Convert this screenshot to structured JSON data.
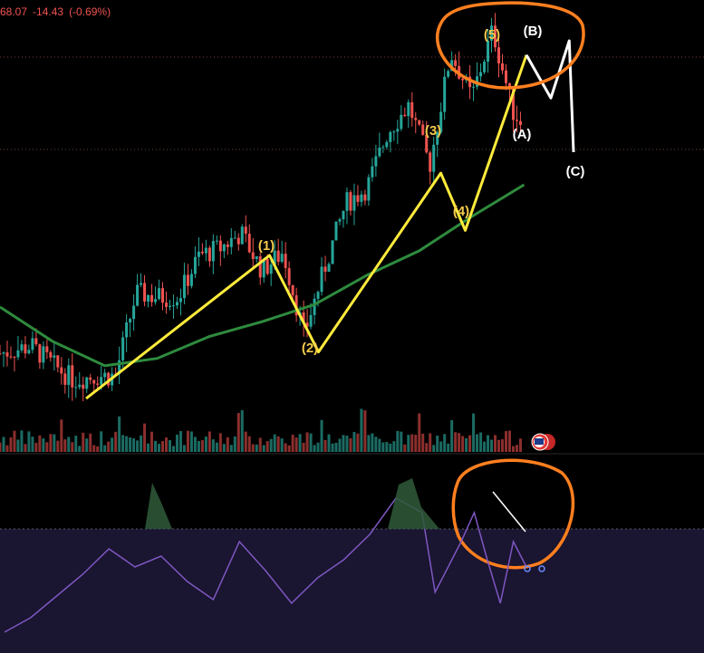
{
  "header": {
    "price": "68.07",
    "change": "-14.43",
    "change_pct": "(-0.69%)"
  },
  "colors": {
    "up": "#26a69a",
    "down": "#ef5350",
    "wave": "#ffeb3b",
    "ma": "#2e8b3e",
    "rsi": "#7e57c2",
    "annotation": "#ff7f1f",
    "correction": "#ffffff",
    "label_impulse": "#f2c94c",
    "label_correction": "#ffffff"
  },
  "chart_data": {
    "type": "candlestick_with_rsi",
    "wave_labels": {
      "impulse": [
        "(1)",
        "(2)",
        "(3)",
        "(4)",
        "(5)"
      ],
      "correction": [
        "(A)",
        "(B)",
        "(C)"
      ]
    },
    "price_path": [
      {
        "x": 0,
        "y": 12
      },
      {
        "x": 6,
        "y": 14
      },
      {
        "x": 10,
        "y": 9
      },
      {
        "x": 14,
        "y": 5
      },
      {
        "x": 18,
        "y": 6
      },
      {
        "x": 22,
        "y": 6
      },
      {
        "x": 26,
        "y": 28
      },
      {
        "x": 30,
        "y": 27
      },
      {
        "x": 34,
        "y": 27
      },
      {
        "x": 38,
        "y": 38
      },
      {
        "x": 42,
        "y": 40
      },
      {
        "x": 46,
        "y": 44
      },
      {
        "x": 50,
        "y": 34
      },
      {
        "x": 54,
        "y": 39
      },
      {
        "x": 58,
        "y": 17
      },
      {
        "x": 62,
        "y": 35
      },
      {
        "x": 66,
        "y": 52
      },
      {
        "x": 70,
        "y": 56
      },
      {
        "x": 74,
        "y": 71
      },
      {
        "x": 78,
        "y": 78
      },
      {
        "x": 82,
        "y": 62
      },
      {
        "x": 86,
        "y": 92
      },
      {
        "x": 90,
        "y": 80
      },
      {
        "x": 94,
        "y": 98
      },
      {
        "x": 98,
        "y": 76
      },
      {
        "x": 102,
        "y": 70
      }
    ],
    "ma_path": [
      {
        "x": 0,
        "y": 30
      },
      {
        "x": 10,
        "y": 16
      },
      {
        "x": 20,
        "y": 6
      },
      {
        "x": 30,
        "y": 9
      },
      {
        "x": 40,
        "y": 18
      },
      {
        "x": 50,
        "y": 24
      },
      {
        "x": 60,
        "y": 31
      },
      {
        "x": 70,
        "y": 43
      },
      {
        "x": 80,
        "y": 53
      },
      {
        "x": 90,
        "y": 67
      },
      {
        "x": 100,
        "y": 80
      }
    ],
    "impulse_wave": [
      {
        "x": 0,
        "y": 0
      },
      {
        "x": 30,
        "y": 40
      },
      {
        "x": 38,
        "y": 13
      },
      {
        "x": 58,
        "y": 63
      },
      {
        "x": 62,
        "y": 47
      },
      {
        "x": 72,
        "y": 96
      }
    ],
    "correction_wave": [
      {
        "x": 72,
        "y": 96
      },
      {
        "x": 76,
        "y": 84
      },
      {
        "x": 79,
        "y": 100
      },
      {
        "x": 84,
        "y": 70
      }
    ],
    "rsi_path": [
      {
        "x": 0,
        "y": 10
      },
      {
        "x": 4,
        "y": 18
      },
      {
        "x": 8,
        "y": 30
      },
      {
        "x": 12,
        "y": 42
      },
      {
        "x": 16,
        "y": 56
      },
      {
        "x": 20,
        "y": 46
      },
      {
        "x": 24,
        "y": 52
      },
      {
        "x": 28,
        "y": 38
      },
      {
        "x": 32,
        "y": 28
      },
      {
        "x": 36,
        "y": 60
      },
      {
        "x": 40,
        "y": 44
      },
      {
        "x": 44,
        "y": 26
      },
      {
        "x": 48,
        "y": 40
      },
      {
        "x": 52,
        "y": 50
      },
      {
        "x": 56,
        "y": 64
      },
      {
        "x": 60,
        "y": 84
      },
      {
        "x": 64,
        "y": 76
      },
      {
        "x": 66,
        "y": 32
      },
      {
        "x": 70,
        "y": 60
      },
      {
        "x": 72,
        "y": 76
      },
      {
        "x": 74,
        "y": 50
      },
      {
        "x": 76,
        "y": 26
      },
      {
        "x": 78,
        "y": 60
      },
      {
        "x": 80,
        "y": 46
      }
    ],
    "rsi_overbought": 70,
    "rsi_oversold": 30,
    "xlabel": "",
    "ylabel": "",
    "grid": false
  }
}
